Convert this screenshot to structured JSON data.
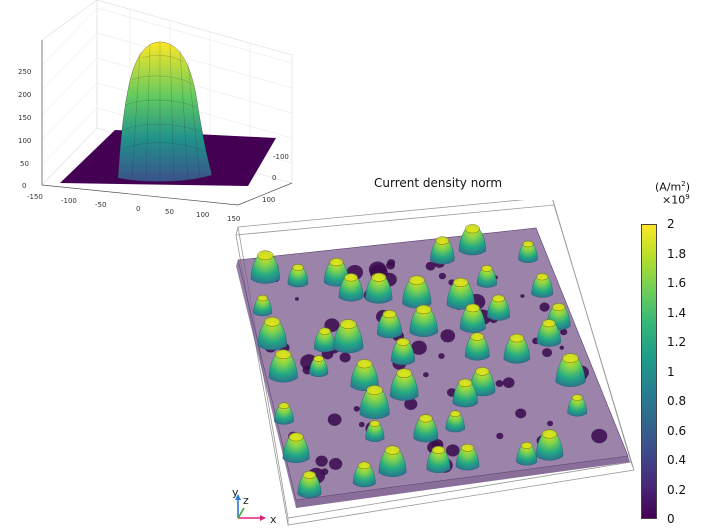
{
  "inset_plot": {
    "z_ticks": [
      "0",
      "50",
      "100",
      "150",
      "200",
      "250"
    ],
    "x_ticks": [
      "-150",
      "-100",
      "-50",
      "0",
      "50",
      "100",
      "150"
    ],
    "y_ticks": [
      "-100",
      "0",
      "100"
    ]
  },
  "main_plot": {
    "title": "Current density norm",
    "colorbar": {
      "unit_base": "(A/m",
      "unit_sup": "2",
      "unit_end": ")",
      "multiplier_base": "×10",
      "multiplier_sup": "9",
      "ticks": [
        "0",
        "0.2",
        "0.4",
        "0.6",
        "0.8",
        "1",
        "1.2",
        "1.4",
        "1.6",
        "1.8",
        "2"
      ],
      "colormap": "viridis",
      "colors": [
        "#440154",
        "#482878",
        "#3e4a89",
        "#31688e",
        "#26828e",
        "#1f9e89",
        "#35b779",
        "#6ece58",
        "#b5de2b",
        "#fde725"
      ]
    },
    "axes_indicator": {
      "y": "y",
      "z": "z",
      "x": "x"
    },
    "slab_color": "#7a5a8e"
  }
}
